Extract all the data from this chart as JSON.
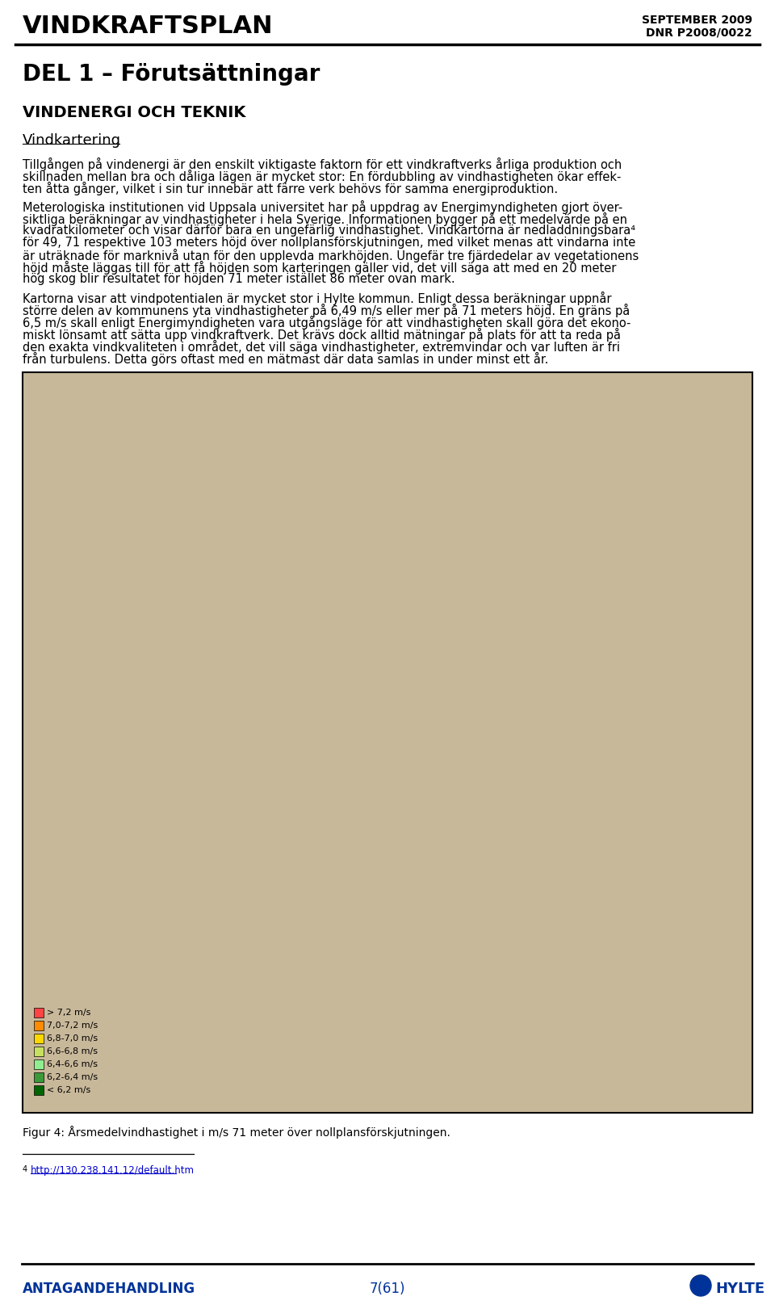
{
  "header_left": "VINDKRAFTSPLAN",
  "header_right_line1": "SEPTEMBER 2009",
  "header_right_line2": "DNR P2008/0022",
  "section_title": "DEL 1 – Förutsättningar",
  "subsection_title": "VINDENERGI OCH TEKNIK",
  "subsubsection_title": "Vindkartering",
  "para1_lines": [
    "Tillgången på vindenergi är den enskilt viktigaste faktorn för ett vindkraftverks årliga produktion och",
    "skillnaden mellan bra och dåliga lägen är mycket stor: En fördubbling av vindhastigheten ökar effek-",
    "ten åtta gånger, vilket i sin tur innebär att färre verk behövs för samma energiproduktion."
  ],
  "para2_lines": [
    "Meterologiska institutionen vid Uppsala universitet har på uppdrag av Energimyndigheten gjort över-",
    "siktliga beräkningar av vindhastigheter i hela Sverige. Informationen bygger på ett medelvärde på en",
    "kvadratkilometer och visar därför bara en ungefärlig vindhastighet. Vindkartorna är nedladdningsbara⁴",
    "för 49, 71 respektive 103 meters höjd över nollplansförskjutningen, med vilket menas att vindarna inte",
    "är uträknade för marknivå utan för den upplevda markhöjden. Ungefär tre fjärdedelar av vegetationens",
    "höjd måste läggas till för att få höjden som karteringen gäller vid, det vill säga att med en 20 meter",
    "hög skog blir resultatet för höjden 71 meter istället 86 meter ovan mark."
  ],
  "para3_lines": [
    "Kartorna visar att vindpotentialen är mycket stor i Hylte kommun. Enligt dessa beräkningar uppnår",
    "större delen av kommunens yta vindhastigheter på 6,49 m/s eller mer på 71 meters höjd. En gräns på",
    "6,5 m/s skall enligt Energimyndigheten vara utgångsläge för att vindhastigheten skall göra det ekono-",
    "miskt lönsamt att sätta upp vindkraftverk. Det krävs dock alltid mätningar på plats för att ta reda på",
    "den exakta vindkvaliteten i området, det vill säga vindhastigheter, extremvindar och var luften är fri",
    "från turbulens. Detta görs oftast med en mätmast där data samlas in under minst ett år."
  ],
  "figure_caption": "Figur 4: Årsmedelvindhastighet i m/s 71 meter över nollplansförskjutningen.",
  "footnote_number": "4",
  "footnote_url": "http://130.238.141.12/default.htm",
  "footer_left": "ANTAGANDEHANDLING",
  "footer_center": "7(61)",
  "legend_items": [
    {
      "color": "#006400",
      "label": "< 6,2 m/s"
    },
    {
      "color": "#3a9a3a",
      "label": "6,2-6,4 m/s"
    },
    {
      "color": "#90EE90",
      "label": "6,4-6,6 m/s"
    },
    {
      "color": "#c8e060",
      "label": "6,6-6,8 m/s"
    },
    {
      "color": "#FFD700",
      "label": "6,8-7,0 m/s"
    },
    {
      "color": "#FF8C00",
      "label": "7,0-7,2 m/s"
    },
    {
      "color": "#FF4444",
      "label": "> 7,2 m/s"
    }
  ],
  "bg_color": "#ffffff",
  "text_color": "#000000",
  "header_color": "#000000",
  "footer_text_color": "#003399",
  "map_bg_color": "#c8b89a",
  "map_border_color": "#000000"
}
